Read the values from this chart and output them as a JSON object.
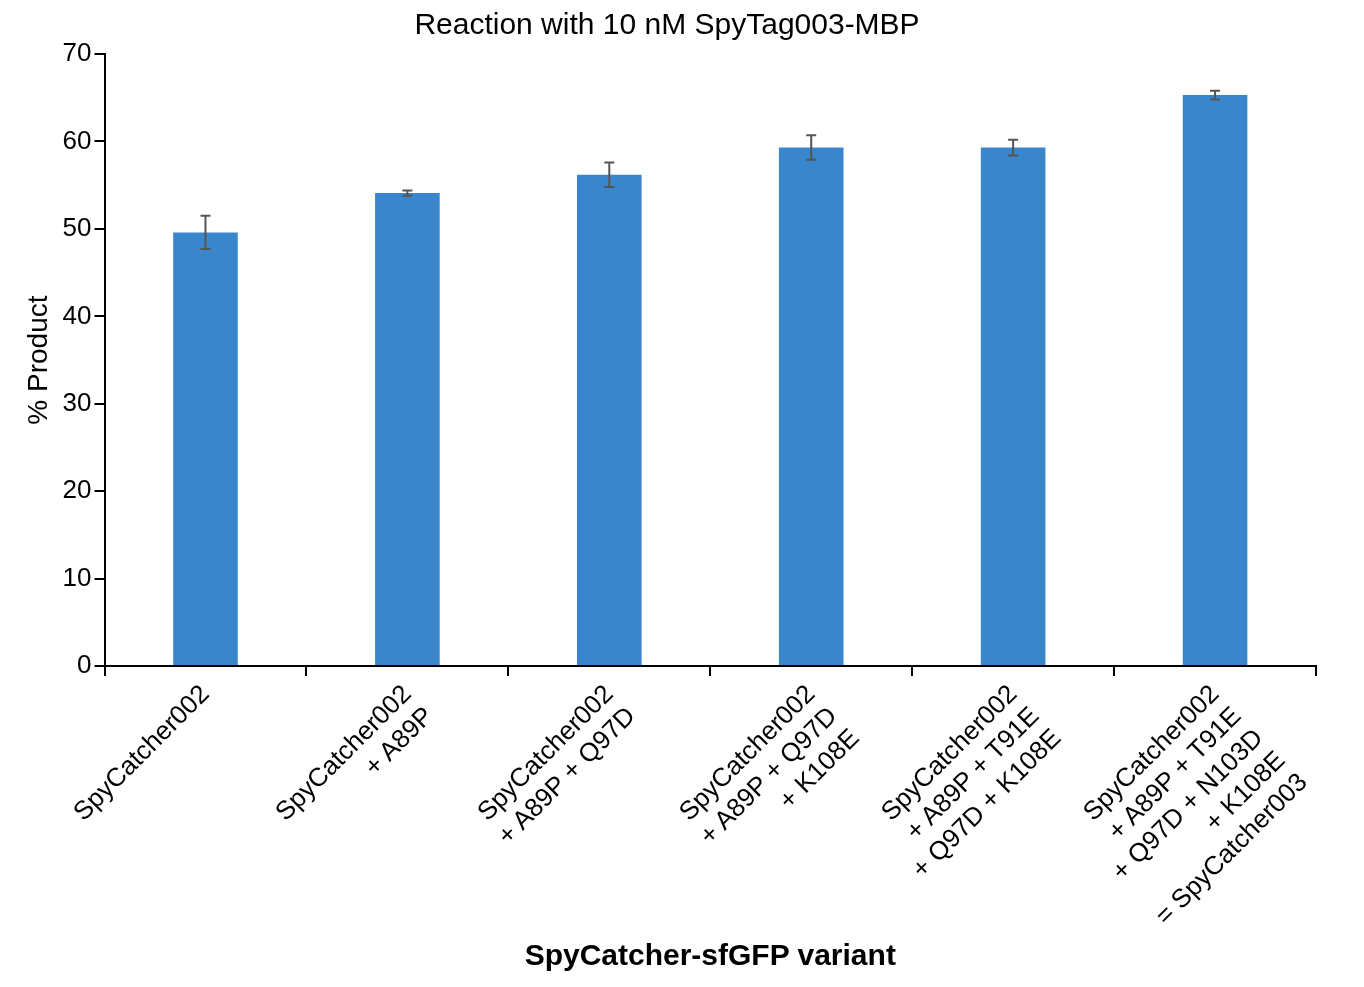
{
  "chart_data": {
    "type": "bar",
    "title": "Reaction with 10 nM SpyTag003-MBP",
    "xlabel": "SpyCatcher-sfGFP variant",
    "ylabel": "% Product",
    "categories": [
      "SpyCatcher002",
      "SpyCatcher002\n+ A89P",
      "SpyCatcher002\n+ A89P + Q97D",
      "SpyCatcher002\n+ A89P + Q97D\n+ K108E",
      "SpyCatcher002\n+ A89P + T91E\n+ Q97D + K108E",
      "SpyCatcher002\n+ A89P + T91E\n+ Q97D + N103D\n+ K108E\n= SpyCatcher003"
    ],
    "values": [
      49.6,
      54.1,
      56.2,
      59.3,
      59.3,
      65.3
    ],
    "errors": [
      1.9,
      0.3,
      1.4,
      1.4,
      0.9,
      0.5
    ],
    "color": "#3a86cc",
    "ylim": [
      0,
      70
    ],
    "yticks": [
      0,
      10,
      20,
      30,
      40,
      50,
      60,
      70
    ],
    "grid": false,
    "legend": false
  }
}
